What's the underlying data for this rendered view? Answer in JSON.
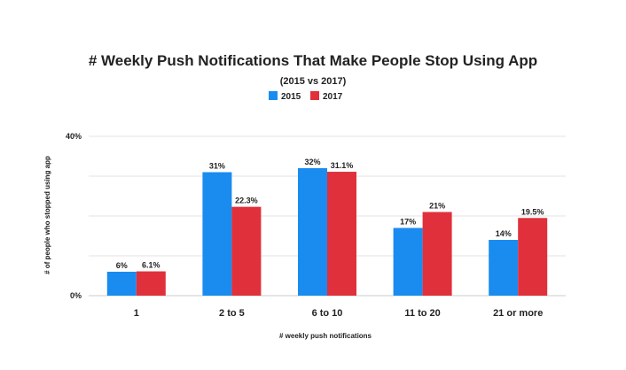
{
  "chart_data": {
    "type": "bar",
    "title": "# Weekly Push Notifications That Make People Stop Using App",
    "subtitle": "(2015 vs 2017)",
    "xlabel": "# weekly push notifications",
    "ylabel": "# of people who stopped using app",
    "categories": [
      "1",
      "2 to 5",
      "6 to 10",
      "11 to 20",
      "21 or more"
    ],
    "series": [
      {
        "name": "2015",
        "color": "#1a8cf0",
        "values": [
          6,
          31,
          32,
          17,
          14
        ],
        "labels": [
          "6%",
          "31%",
          "32%",
          "17%",
          "14%"
        ]
      },
      {
        "name": "2017",
        "color": "#e0303b",
        "values": [
          6.1,
          22.3,
          31.1,
          21,
          19.5
        ],
        "labels": [
          "6.1%",
          "22.3%",
          "31.1%",
          "21%",
          "19.5%"
        ]
      }
    ],
    "ylim": [
      0,
      40
    ],
    "yticks": [
      0,
      10,
      20,
      30,
      40
    ],
    "ytick_labels": [
      "0%",
      "",
      "",
      "",
      "40%"
    ],
    "grid": true,
    "legend": "top-center"
  }
}
